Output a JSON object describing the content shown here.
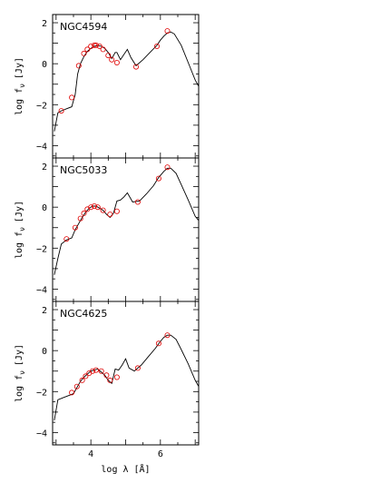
{
  "chart_data": [
    {
      "type": "line",
      "galaxy": "NGC4594",
      "ylabel_main": "log  f",
      "ylabel_sub": "ν",
      "ylabel_unit": "[Jy]",
      "xlim": [
        2.9,
        7.1
      ],
      "ylim": [
        -4.6,
        2.4
      ],
      "xticks": [
        4,
        6
      ],
      "yticks": [
        -4,
        -2,
        0,
        2
      ],
      "model_x": [
        2.95,
        3.05,
        3.15,
        3.3,
        3.45,
        3.55,
        3.62,
        3.7,
        3.8,
        3.9,
        4.0,
        4.1,
        4.2,
        4.3,
        4.4,
        4.5,
        4.6,
        4.7,
        4.75,
        4.85,
        4.95,
        5.05,
        5.15,
        5.3,
        5.5,
        5.7,
        5.9,
        6.0,
        6.1,
        6.2,
        6.3,
        6.4,
        6.6,
        6.8,
        7.0,
        7.1
      ],
      "model_y": [
        -3.3,
        -2.4,
        -2.3,
        -2.2,
        -2.1,
        -1.5,
        -0.5,
        0.0,
        0.35,
        0.6,
        0.75,
        0.85,
        0.9,
        0.85,
        0.75,
        0.55,
        0.25,
        0.55,
        0.55,
        0.2,
        0.45,
        0.7,
        0.3,
        -0.1,
        0.2,
        0.55,
        0.9,
        1.15,
        1.35,
        1.5,
        1.55,
        1.45,
        0.9,
        0.05,
        -0.8,
        -1.1
      ],
      "phot_x": [
        3.15,
        3.45,
        3.65,
        3.8,
        3.9,
        4.0,
        4.1,
        4.15,
        4.25,
        4.35,
        4.5,
        4.6,
        4.75,
        5.3,
        5.9,
        6.2
      ],
      "phot_y": [
        -2.3,
        -1.65,
        -0.1,
        0.5,
        0.7,
        0.85,
        0.9,
        0.9,
        0.85,
        0.7,
        0.4,
        0.2,
        0.05,
        -0.15,
        0.85,
        1.6
      ]
    },
    {
      "type": "line",
      "galaxy": "NGC5033",
      "ylabel_main": "log  f",
      "ylabel_sub": "ν",
      "ylabel_unit": "[Jy]",
      "xlim": [
        2.9,
        7.1
      ],
      "ylim": [
        -4.6,
        2.4
      ],
      "xticks": [
        4,
        6
      ],
      "yticks": [
        -4,
        -2,
        0,
        2
      ],
      "model_x": [
        2.95,
        3.05,
        3.15,
        3.3,
        3.45,
        3.55,
        3.65,
        3.75,
        3.85,
        3.95,
        4.05,
        4.15,
        4.25,
        4.35,
        4.45,
        4.55,
        4.65,
        4.75,
        4.85,
        4.95,
        5.05,
        5.2,
        5.4,
        5.6,
        5.8,
        5.95,
        6.1,
        6.2,
        6.3,
        6.45,
        6.6,
        6.8,
        7.0,
        7.1
      ],
      "model_y": [
        -3.3,
        -2.5,
        -1.8,
        -1.6,
        -1.5,
        -1.1,
        -0.8,
        -0.5,
        -0.25,
        -0.05,
        0.05,
        0.05,
        -0.05,
        -0.15,
        -0.35,
        -0.5,
        -0.3,
        0.3,
        0.35,
        0.5,
        0.7,
        0.25,
        0.3,
        0.65,
        1.05,
        1.45,
        1.75,
        1.9,
        1.9,
        1.65,
        1.1,
        0.35,
        -0.45,
        -0.65
      ],
      "phot_x": [
        3.3,
        3.55,
        3.7,
        3.8,
        3.9,
        4.0,
        4.1,
        4.2,
        4.35,
        4.55,
        4.75,
        5.35,
        5.95,
        6.2
      ],
      "phot_y": [
        -1.55,
        -1.0,
        -0.55,
        -0.3,
        -0.1,
        0.0,
        0.05,
        0.0,
        -0.15,
        -0.35,
        -0.2,
        0.25,
        1.4,
        1.95
      ]
    },
    {
      "type": "line",
      "galaxy": "NGC4625",
      "ylabel_main": "log  f",
      "ylabel_sub": "ν",
      "ylabel_unit": "[Jy]",
      "xlabel_main": "log  λ",
      "xlabel_unit": "[Å]",
      "xlim": [
        2.9,
        7.1
      ],
      "ylim": [
        -4.6,
        2.4
      ],
      "xticks": [
        4,
        6
      ],
      "yticks": [
        -4,
        -2,
        0,
        2
      ],
      "model_x": [
        2.95,
        3.05,
        3.2,
        3.35,
        3.5,
        3.6,
        3.7,
        3.8,
        3.9,
        4.0,
        4.1,
        4.2,
        4.3,
        4.4,
        4.5,
        4.6,
        4.7,
        4.8,
        4.9,
        5.0,
        5.1,
        5.25,
        5.45,
        5.65,
        5.85,
        6.0,
        6.1,
        6.2,
        6.3,
        6.45,
        6.6,
        6.8,
        7.0,
        7.1
      ],
      "model_y": [
        -3.4,
        -2.4,
        -2.3,
        -2.2,
        -2.1,
        -1.8,
        -1.5,
        -1.3,
        -1.15,
        -1.0,
        -0.95,
        -0.9,
        -1.05,
        -1.2,
        -1.45,
        -1.6,
        -0.9,
        -0.95,
        -0.7,
        -0.4,
        -0.85,
        -1.0,
        -0.7,
        -0.3,
        0.1,
        0.45,
        0.65,
        0.75,
        0.75,
        0.55,
        0.05,
        -0.65,
        -1.45,
        -1.75
      ],
      "phot_x": [
        3.45,
        3.6,
        3.75,
        3.85,
        3.95,
        4.05,
        4.15,
        4.3,
        4.45,
        4.55,
        4.75,
        5.35,
        5.95,
        6.2
      ],
      "phot_y": [
        -2.05,
        -1.75,
        -1.45,
        -1.25,
        -1.1,
        -1.0,
        -0.95,
        -1.0,
        -1.2,
        -1.45,
        -1.3,
        -0.85,
        0.35,
        0.75
      ]
    }
  ]
}
